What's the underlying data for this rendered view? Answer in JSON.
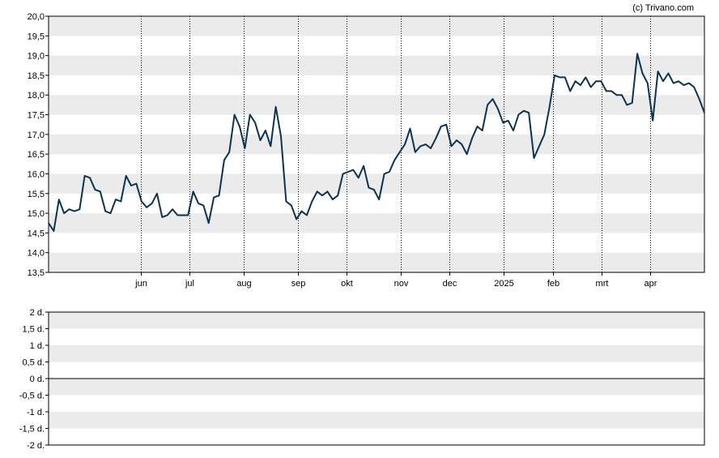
{
  "credit": "(c) Trivano.com",
  "colors": {
    "line": "#0b3350",
    "band": "#ebebeb",
    "grid": "#000000",
    "text": "#000000"
  },
  "chart_data": [
    {
      "type": "line",
      "title": "",
      "xlabel": "",
      "ylabel": "",
      "ylim": [
        13.5,
        20.0
      ],
      "y_ticks": [
        "13,5",
        "14,0",
        "14,5",
        "15,0",
        "15,5",
        "16,0",
        "16,5",
        "17,0",
        "17,5",
        "18,0",
        "18,5",
        "19,0",
        "19,5",
        "20,0"
      ],
      "x_ticks": [
        {
          "label": "jun",
          "x": 17
        },
        {
          "label": "jul",
          "x": 26
        },
        {
          "label": "aug",
          "x": 36
        },
        {
          "label": "sep",
          "x": 46
        },
        {
          "label": "okt",
          "x": 55
        },
        {
          "label": "nov",
          "x": 65
        },
        {
          "label": "dec",
          "x": 74
        },
        {
          "label": "2025",
          "x": 84
        },
        {
          "label": "feb",
          "x": 93
        },
        {
          "label": "mrt",
          "x": 102
        },
        {
          "label": "apr",
          "x": 111
        }
      ],
      "x_range": [
        0,
        121
      ],
      "grid": "vertical dotted lines at month ticks, alternating grey horizontal bands",
      "series": [
        {
          "values": [
            14.75,
            14.55,
            15.35,
            15.0,
            15.1,
            15.05,
            15.1,
            15.95,
            15.9,
            15.6,
            15.55,
            15.05,
            15.0,
            15.35,
            15.3,
            15.95,
            15.7,
            15.75,
            15.3,
            15.15,
            15.25,
            15.5,
            14.9,
            14.95,
            15.1,
            14.95,
            14.95,
            14.95,
            15.55,
            15.25,
            15.2,
            14.75,
            15.4,
            15.45,
            16.35,
            16.55,
            17.5,
            17.2,
            16.65,
            17.5,
            17.3,
            16.85,
            17.1,
            16.7,
            17.7,
            16.95,
            15.3,
            15.2,
            14.85,
            15.05,
            14.95,
            15.3,
            15.55,
            15.45,
            15.55,
            15.35,
            15.45,
            16.0,
            16.05,
            16.1,
            15.9,
            16.2,
            15.65,
            15.6,
            15.35,
            16.0,
            16.05,
            16.35,
            16.55,
            16.75,
            17.15,
            16.55,
            16.7,
            16.75,
            16.65,
            16.9,
            17.2,
            17.25,
            16.7,
            16.85,
            16.75,
            16.5,
            16.9,
            17.2,
            17.1,
            17.75,
            17.9,
            17.65,
            17.3,
            17.35,
            17.1,
            17.5,
            17.6,
            17.55,
            16.4,
            16.7,
            17.0,
            17.7,
            18.5,
            18.45,
            18.45,
            18.1,
            18.35,
            18.25,
            18.45,
            18.2,
            18.35,
            18.35,
            18.1,
            18.1,
            18.0,
            18.0,
            17.75,
            17.8,
            19.05,
            18.55,
            18.3,
            17.35,
            18.6,
            18.35,
            18.55,
            18.3,
            18.35,
            18.25,
            18.3,
            18.2,
            17.9,
            17.55
          ]
        }
      ]
    },
    {
      "type": "line",
      "title": "",
      "ylim": [
        -2,
        2
      ],
      "y_ticks": [
        "-2 d.",
        "-1,5 d.",
        "-1 d.",
        "-0,5 d.",
        "0 d.",
        "0,5 d.",
        "1 d.",
        "1,5 d.",
        "2 d."
      ],
      "series": []
    }
  ]
}
